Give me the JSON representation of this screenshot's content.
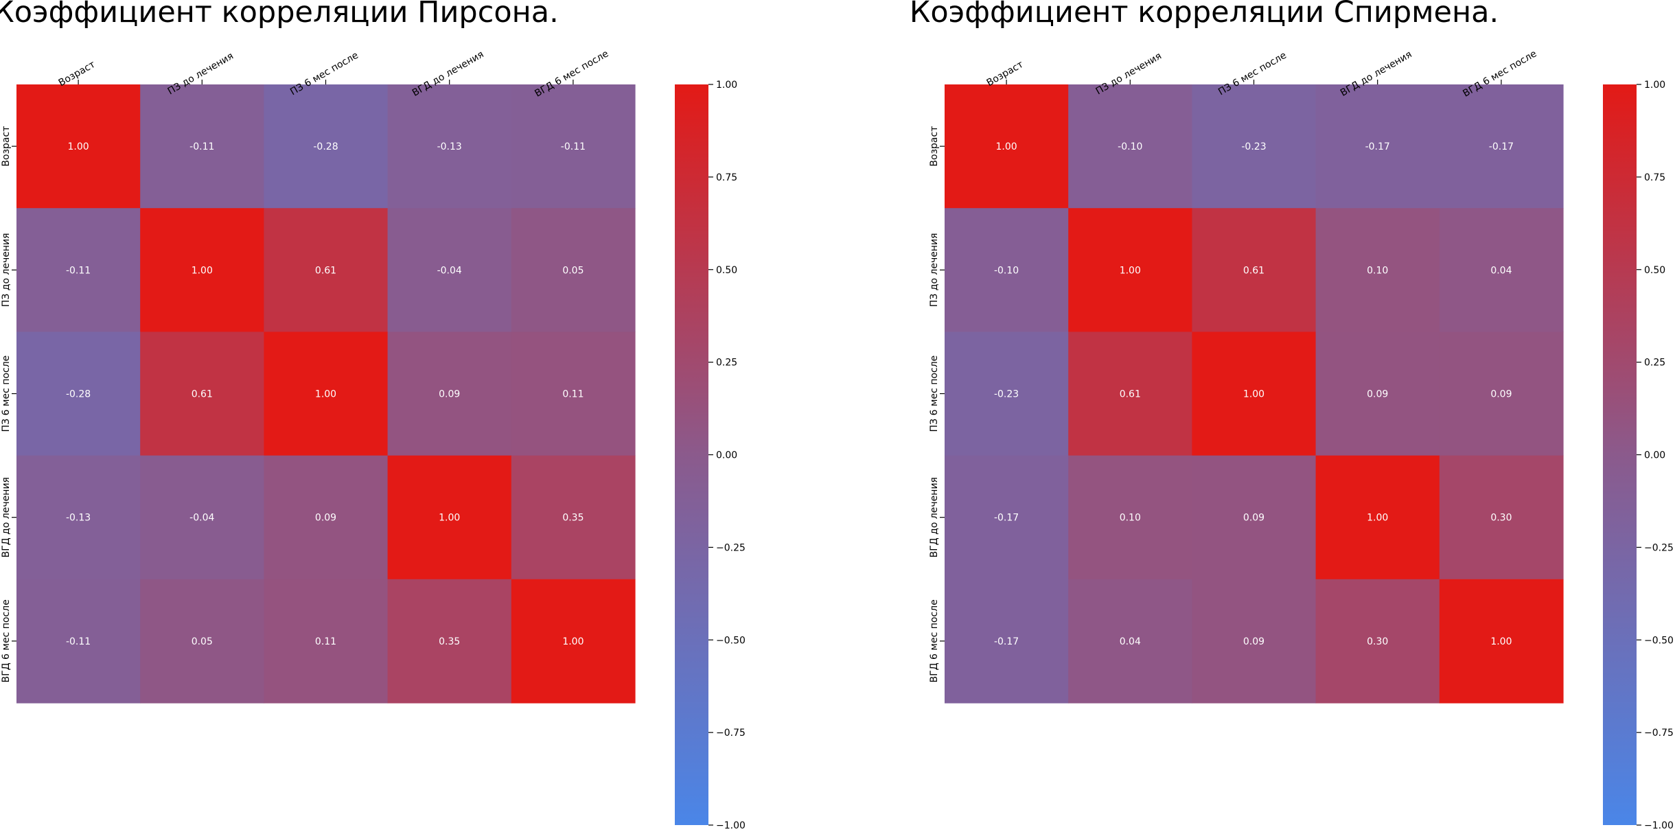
{
  "chart_data": [
    {
      "type": "heatmap",
      "title": "Коэффициент корреляции Пирсона.",
      "x_labels": [
        "Возраст",
        "ПЗ до лечения",
        "ПЗ 6 мес после",
        "ВГД до лечения",
        "ВГД 6 мес после"
      ],
      "y_labels": [
        "Возраст",
        "ПЗ до лечения",
        "ПЗ 6 мес после",
        "ВГД до лечения",
        "ВГД 6 мес после"
      ],
      "values": [
        [
          1.0,
          -0.11,
          -0.28,
          -0.13,
          -0.11
        ],
        [
          -0.11,
          1.0,
          0.61,
          -0.04,
          0.05
        ],
        [
          -0.28,
          0.61,
          1.0,
          0.09,
          0.11
        ],
        [
          -0.13,
          -0.04,
          0.09,
          1.0,
          0.35
        ],
        [
          -0.11,
          0.05,
          0.11,
          0.35,
          1.0
        ]
      ],
      "value_format": "0.00",
      "colorbar": {
        "vmin": -1.0,
        "vmax": 1.0,
        "ticks": [
          "1.00",
          "0.75",
          "0.50",
          "0.25",
          "0.00",
          "−0.25",
          "−0.50",
          "−0.75",
          "−1.00"
        ],
        "colors": {
          "low": "#4a86e8",
          "mid": "#8b5a8c",
          "high": "#e31a16"
        }
      }
    },
    {
      "type": "heatmap",
      "title": "Коэффициент корреляции Спирмена.",
      "x_labels": [
        "Возраст",
        "ПЗ до лечения",
        "ПЗ 6 мес после",
        "ВГД до лечения",
        "ВГД 6 мес после"
      ],
      "y_labels": [
        "Возраст",
        "ПЗ до лечения",
        "ПЗ 6 мес после",
        "ВГД до лечения",
        "ВГД 6 мес после"
      ],
      "values": [
        [
          1.0,
          -0.1,
          -0.23,
          -0.17,
          -0.17
        ],
        [
          -0.1,
          1.0,
          0.61,
          0.1,
          0.04
        ],
        [
          -0.23,
          0.61,
          1.0,
          0.09,
          0.09
        ],
        [
          -0.17,
          0.1,
          0.09,
          1.0,
          0.3
        ],
        [
          -0.17,
          0.04,
          0.09,
          0.3,
          1.0
        ]
      ],
      "value_format": "0.00",
      "colorbar": {
        "vmin": -1.0,
        "vmax": 1.0,
        "ticks": [
          "1.00",
          "0.75",
          "0.50",
          "0.25",
          "0.00",
          "−0.25",
          "−0.50",
          "−0.75",
          "−1.00"
        ],
        "colors": {
          "low": "#4a86e8",
          "mid": "#8b5a8c",
          "high": "#e31a16"
        }
      }
    }
  ]
}
